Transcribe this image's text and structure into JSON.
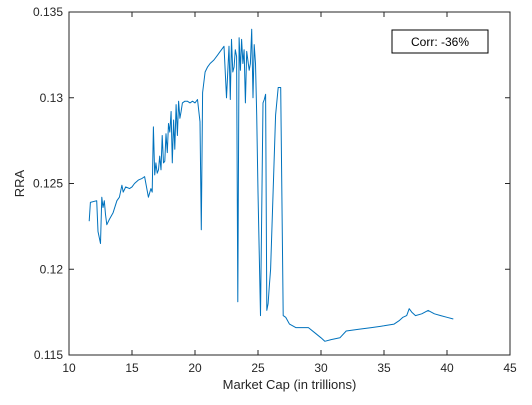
{
  "chart_data": {
    "type": "line",
    "title": "",
    "xlabel": "Market Cap (in trillions)",
    "ylabel": "RRA",
    "xlim": [
      10,
      45
    ],
    "ylim": [
      0.115,
      0.135
    ],
    "xticks": [
      10,
      15,
      20,
      25,
      30,
      35,
      40,
      45
    ],
    "yticks": [
      0.115,
      0.12,
      0.125,
      0.13,
      0.135
    ],
    "xtick_labels": [
      "10",
      "15",
      "20",
      "25",
      "30",
      "35",
      "40",
      "45"
    ],
    "ytick_labels": [
      "0.115",
      "0.12",
      "0.125",
      "0.13",
      "0.135"
    ],
    "grid": false,
    "annotation": "Corr: -36%",
    "annotation_position": "top-right",
    "series_color": "#0072bd",
    "series": [
      {
        "x": [
          11.6,
          11.7,
          12.2,
          12.3,
          12.5,
          12.6,
          12.7,
          12.8,
          12.9,
          13.0,
          13.2,
          13.5,
          13.8,
          14.0,
          14.2,
          14.3,
          14.5,
          14.8,
          15.0,
          15.2,
          15.5,
          15.8,
          16.0,
          16.3,
          16.5,
          16.6,
          16.7,
          16.8,
          16.9,
          17.0,
          17.1,
          17.2,
          17.3,
          17.4,
          17.5,
          17.6,
          17.7,
          17.8,
          17.9,
          18.0,
          18.1,
          18.2,
          18.3,
          18.4,
          18.5,
          18.6,
          18.7,
          18.8,
          18.9,
          19.0,
          19.2,
          19.4,
          19.6,
          19.8,
          20.0,
          20.2,
          20.4,
          20.5,
          20.6,
          20.8,
          21.0,
          21.2,
          21.5,
          21.8,
          22.0,
          22.3,
          22.5,
          22.7,
          22.8,
          22.9,
          23.0,
          23.1,
          23.2,
          23.3,
          23.4,
          23.5,
          23.6,
          23.7,
          23.8,
          23.9,
          24.0,
          24.1,
          24.3,
          24.4,
          24.5,
          24.6,
          24.7,
          24.8,
          24.9,
          25.0,
          25.2,
          25.4,
          25.5,
          25.6,
          25.7,
          25.8,
          25.9,
          26.0,
          26.2,
          26.4,
          26.6,
          26.8,
          27.0,
          27.2,
          27.5,
          28.0,
          28.5,
          29.0,
          29.5,
          30.0,
          30.3,
          30.8,
          31.5,
          32.0,
          33.0,
          34.0,
          35.0,
          35.8,
          36.2,
          36.5,
          36.8,
          37.0,
          37.2,
          37.5,
          38.0,
          38.5,
          39.0,
          39.5,
          40.0,
          40.5
        ],
        "y": [
          0.1228,
          0.1239,
          0.124,
          0.1222,
          0.1215,
          0.1242,
          0.1236,
          0.124,
          0.1232,
          0.1226,
          0.1229,
          0.1233,
          0.124,
          0.1242,
          0.1249,
          0.1245,
          0.1248,
          0.1247,
          0.1248,
          0.125,
          0.1252,
          0.1253,
          0.1254,
          0.1242,
          0.1247,
          0.1245,
          0.1283,
          0.1255,
          0.1262,
          0.1256,
          0.1258,
          0.1266,
          0.1258,
          0.1278,
          0.1262,
          0.1263,
          0.1279,
          0.1268,
          0.1285,
          0.128,
          0.1292,
          0.1262,
          0.1287,
          0.127,
          0.1296,
          0.1278,
          0.1298,
          0.1288,
          0.1292,
          0.1297,
          0.1298,
          0.1298,
          0.1297,
          0.1298,
          0.1297,
          0.1299,
          0.1286,
          0.1223,
          0.1303,
          0.1315,
          0.1318,
          0.132,
          0.1322,
          0.1325,
          0.1327,
          0.133,
          0.13,
          0.133,
          0.1299,
          0.1334,
          0.1315,
          0.1318,
          0.1328,
          0.1324,
          0.1181,
          0.1335,
          0.1316,
          0.1334,
          0.132,
          0.1328,
          0.1297,
          0.1327,
          0.1316,
          0.132,
          0.134,
          0.13,
          0.1331,
          0.132,
          0.129,
          0.1245,
          0.1173,
          0.1297,
          0.1299,
          0.1302,
          0.1176,
          0.118,
          0.119,
          0.12,
          0.1245,
          0.129,
          0.1306,
          0.1306,
          0.1173,
          0.1172,
          0.1168,
          0.1166,
          0.1166,
          0.1166,
          0.1163,
          0.116,
          0.1158,
          0.1159,
          0.116,
          0.1164,
          0.1165,
          0.1166,
          0.1167,
          0.1168,
          0.117,
          0.1172,
          0.1173,
          0.1177,
          0.1175,
          0.1173,
          0.1174,
          0.1176,
          0.1174,
          0.1173,
          0.1172,
          0.1171
        ]
      }
    ]
  }
}
